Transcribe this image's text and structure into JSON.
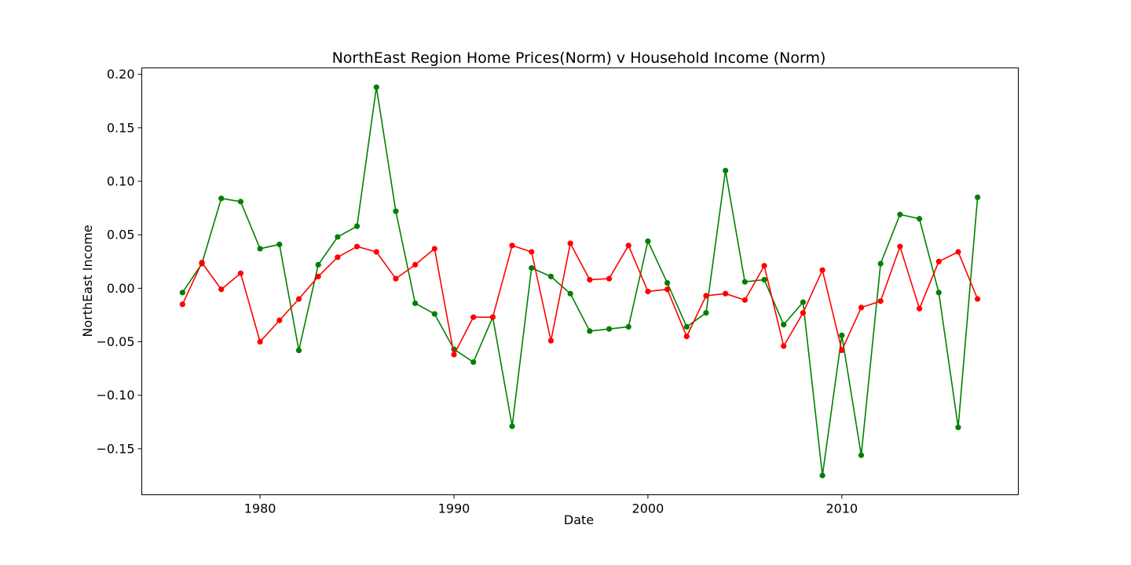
{
  "chart_data": {
    "type": "line",
    "title": "NorthEast Region Home Prices(Norm) v Household Income (Norm)",
    "xlabel": "Date",
    "ylabel": "NorthEast Income",
    "xlim": [
      1973.9,
      2019.1
    ],
    "ylim": [
      -0.193,
      0.206
    ],
    "xticks": [
      1980,
      1990,
      2000,
      2010
    ],
    "yticks": [
      -0.15,
      -0.1,
      -0.05,
      0.0,
      0.05,
      0.1,
      0.15,
      0.2
    ],
    "ytick_labels": [
      "−0.15",
      "−0.10",
      "−0.05",
      "0.00",
      "0.05",
      "0.10",
      "0.15",
      "0.20"
    ],
    "grid": false,
    "legend": "none",
    "x": [
      1976,
      1977,
      1978,
      1979,
      1980,
      1981,
      1982,
      1983,
      1984,
      1985,
      1986,
      1987,
      1988,
      1989,
      1990,
      1991,
      1992,
      1993,
      1994,
      1995,
      1996,
      1997,
      1998,
      1999,
      2000,
      2001,
      2002,
      2003,
      2004,
      2005,
      2006,
      2007,
      2008,
      2009,
      2010,
      2011,
      2012,
      2013,
      2014,
      2015,
      2016,
      2017
    ],
    "series": [
      {
        "color": "#008000",
        "values": [
          -0.004,
          0.023,
          0.084,
          0.081,
          0.037,
          0.041,
          -0.058,
          0.022,
          0.048,
          0.058,
          0.188,
          0.072,
          -0.014,
          -0.024,
          -0.057,
          -0.069,
          -0.027,
          -0.129,
          0.019,
          0.011,
          -0.005,
          -0.04,
          -0.038,
          -0.036,
          0.044,
          0.005,
          -0.036,
          -0.023,
          0.11,
          0.006,
          0.008,
          -0.034,
          -0.013,
          -0.175,
          -0.044,
          -0.156,
          0.023,
          0.069,
          0.065,
          -0.004,
          -0.13,
          0.085
        ]
      },
      {
        "color": "#ff0000",
        "values": [
          -0.015,
          0.024,
          -0.001,
          0.014,
          -0.05,
          -0.03,
          -0.01,
          0.011,
          0.029,
          0.039,
          0.034,
          0.009,
          0.022,
          0.037,
          -0.062,
          -0.027,
          -0.027,
          0.04,
          0.034,
          -0.049,
          0.042,
          0.008,
          0.009,
          0.04,
          -0.003,
          -0.001,
          -0.045,
          -0.007,
          -0.005,
          -0.011,
          0.021,
          -0.054,
          -0.023,
          0.017,
          -0.058,
          -0.018,
          -0.012,
          0.039,
          -0.019,
          0.025,
          0.034,
          -0.01
        ]
      }
    ]
  }
}
